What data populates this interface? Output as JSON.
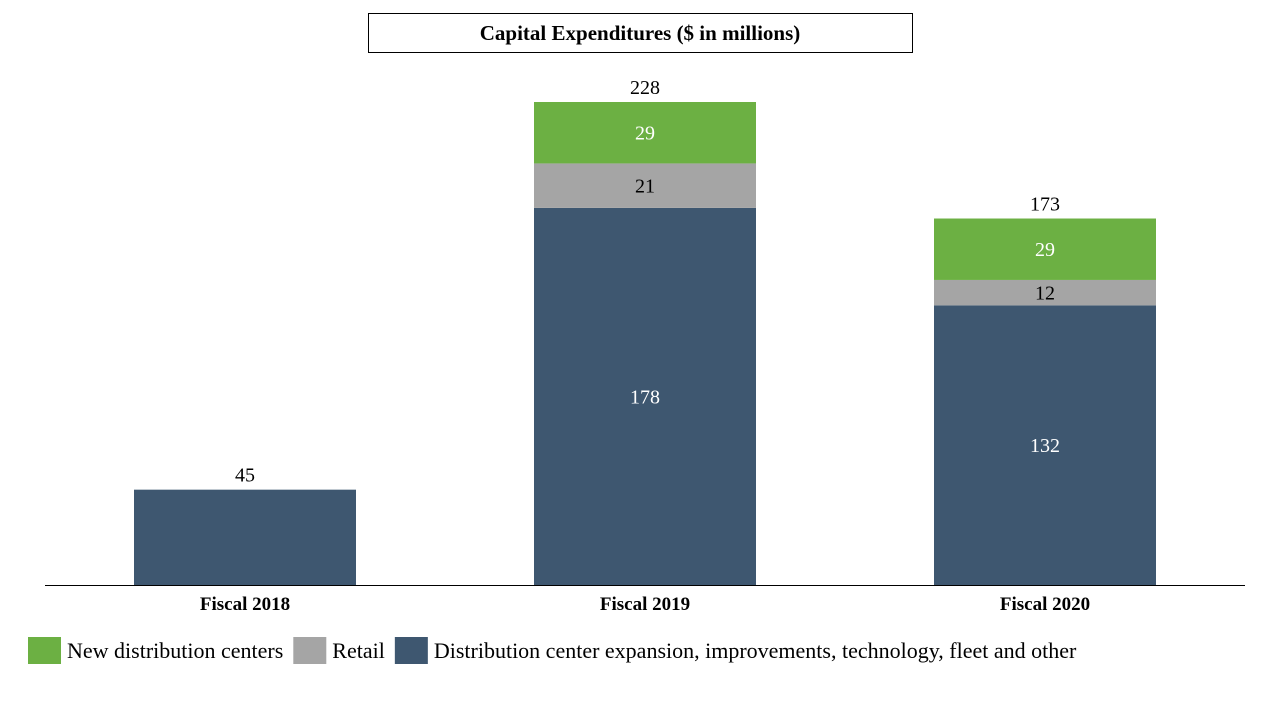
{
  "chart_data": {
    "type": "bar",
    "stacked": true,
    "title": "Capital Expenditures ($ in millions)",
    "xlabel": "",
    "ylabel": "",
    "ylim": [
      0,
      228
    ],
    "grid": false,
    "legend_placement": "bottom-left",
    "categories": [
      "Fiscal 2018",
      "Fiscal 2019",
      "Fiscal 2020"
    ],
    "totals": [
      45,
      228,
      173
    ],
    "series": [
      {
        "name": "Distribution center expansion, improvements, technology, fleet and other",
        "color": "#3E5770",
        "label_color": "#FFFFFF",
        "values": [
          45,
          178,
          132
        ]
      },
      {
        "name": "Retail",
        "color": "#A5A5A5",
        "label_color": "#000000",
        "values": [
          0,
          21,
          12
        ]
      },
      {
        "name": "New distribution centers",
        "color": "#6CB043",
        "label_color": "#FFFFFF",
        "values": [
          0,
          29,
          29
        ]
      }
    ],
    "legend_order": [
      2,
      1,
      0
    ]
  }
}
